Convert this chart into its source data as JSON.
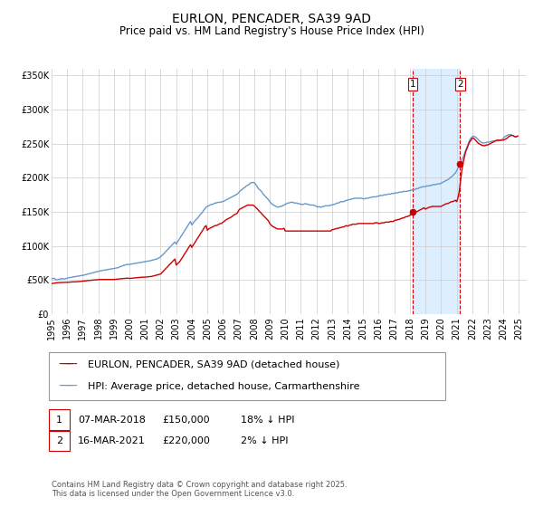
{
  "title": "EURLON, PENCADER, SA39 9AD",
  "subtitle": "Price paid vs. HM Land Registry's House Price Index (HPI)",
  "ylim": [
    0,
    360000
  ],
  "xlim_start": 1995.0,
  "xlim_end": 2025.5,
  "yticks": [
    0,
    50000,
    100000,
    150000,
    200000,
    250000,
    300000,
    350000
  ],
  "ytick_labels": [
    "£0",
    "£50K",
    "£100K",
    "£150K",
    "£200K",
    "£250K",
    "£300K",
    "£350K"
  ],
  "xticks": [
    1995,
    1996,
    1997,
    1998,
    1999,
    2000,
    2001,
    2002,
    2003,
    2004,
    2005,
    2006,
    2007,
    2008,
    2009,
    2010,
    2011,
    2012,
    2013,
    2014,
    2015,
    2016,
    2017,
    2018,
    2019,
    2020,
    2021,
    2022,
    2023,
    2024,
    2025
  ],
  "red_line_color": "#cc0000",
  "blue_line_color": "#6699cc",
  "marker1_x": 2018.18,
  "marker1_y": 150000,
  "marker2_x": 2021.21,
  "marker2_y": 220000,
  "shade_color": "#ddeeff",
  "legend_label_red": "EURLON, PENCADER, SA39 9AD (detached house)",
  "legend_label_blue": "HPI: Average price, detached house, Carmarthenshire",
  "annotation1_label": "1",
  "annotation2_label": "2",
  "annotation1_date": "07-MAR-2018",
  "annotation1_price": "£150,000",
  "annotation1_hpi": "18% ↓ HPI",
  "annotation2_date": "16-MAR-2021",
  "annotation2_price": "£220,000",
  "annotation2_hpi": "2% ↓ HPI",
  "footer": "Contains HM Land Registry data © Crown copyright and database right 2025.\nThis data is licensed under the Open Government Licence v3.0.",
  "background_color": "#ffffff",
  "grid_color": "#cccccc",
  "title_fontsize": 10,
  "subtitle_fontsize": 8.5,
  "tick_fontsize": 7,
  "legend_fontsize": 8,
  "ann_fontsize": 8,
  "footer_fontsize": 6,
  "hpi_data_x": [
    1995.0,
    1995.08,
    1995.17,
    1995.25,
    1995.33,
    1995.42,
    1995.5,
    1995.58,
    1995.67,
    1995.75,
    1995.83,
    1995.92,
    1996.0,
    1996.08,
    1996.17,
    1996.25,
    1996.33,
    1996.42,
    1996.5,
    1996.58,
    1996.67,
    1996.75,
    1996.83,
    1996.92,
    1997.0,
    1997.08,
    1997.17,
    1997.25,
    1997.33,
    1997.42,
    1997.5,
    1997.58,
    1997.67,
    1997.75,
    1997.83,
    1997.92,
    1998.0,
    1998.08,
    1998.17,
    1998.25,
    1998.33,
    1998.42,
    1998.5,
    1998.58,
    1998.67,
    1998.75,
    1998.83,
    1998.92,
    1999.0,
    1999.08,
    1999.17,
    1999.25,
    1999.33,
    1999.42,
    1999.5,
    1999.58,
    1999.67,
    1999.75,
    1999.83,
    1999.92,
    2000.0,
    2000.08,
    2000.17,
    2000.25,
    2000.33,
    2000.42,
    2000.5,
    2000.58,
    2000.67,
    2000.75,
    2000.83,
    2000.92,
    2001.0,
    2001.08,
    2001.17,
    2001.25,
    2001.33,
    2001.42,
    2001.5,
    2001.58,
    2001.67,
    2001.75,
    2001.83,
    2001.92,
    2002.0,
    2002.08,
    2002.17,
    2002.25,
    2002.33,
    2002.42,
    2002.5,
    2002.58,
    2002.67,
    2002.75,
    2002.83,
    2002.92,
    2003.0,
    2003.08,
    2003.17,
    2003.25,
    2003.33,
    2003.42,
    2003.5,
    2003.58,
    2003.67,
    2003.75,
    2003.83,
    2003.92,
    2004.0,
    2004.08,
    2004.17,
    2004.25,
    2004.33,
    2004.42,
    2004.5,
    2004.58,
    2004.67,
    2004.75,
    2004.83,
    2004.92,
    2005.0,
    2005.08,
    2005.17,
    2005.25,
    2005.33,
    2005.42,
    2005.5,
    2005.58,
    2005.67,
    2005.75,
    2005.83,
    2005.92,
    2006.0,
    2006.08,
    2006.17,
    2006.25,
    2006.33,
    2006.42,
    2006.5,
    2006.58,
    2006.67,
    2006.75,
    2006.83,
    2006.92,
    2007.0,
    2007.08,
    2007.17,
    2007.25,
    2007.33,
    2007.42,
    2007.5,
    2007.58,
    2007.67,
    2007.75,
    2007.83,
    2007.92,
    2008.0,
    2008.08,
    2008.17,
    2008.25,
    2008.33,
    2008.42,
    2008.5,
    2008.58,
    2008.67,
    2008.75,
    2008.83,
    2008.92,
    2009.0,
    2009.08,
    2009.17,
    2009.25,
    2009.33,
    2009.42,
    2009.5,
    2009.58,
    2009.67,
    2009.75,
    2009.83,
    2009.92,
    2010.0,
    2010.08,
    2010.17,
    2010.25,
    2010.33,
    2010.42,
    2010.5,
    2010.58,
    2010.67,
    2010.75,
    2010.83,
    2010.92,
    2011.0,
    2011.08,
    2011.17,
    2011.25,
    2011.33,
    2011.42,
    2011.5,
    2011.58,
    2011.67,
    2011.75,
    2011.83,
    2011.92,
    2012.0,
    2012.08,
    2012.17,
    2012.25,
    2012.33,
    2012.42,
    2012.5,
    2012.58,
    2012.67,
    2012.75,
    2012.83,
    2012.92,
    2013.0,
    2013.08,
    2013.17,
    2013.25,
    2013.33,
    2013.42,
    2013.5,
    2013.58,
    2013.67,
    2013.75,
    2013.83,
    2013.92,
    2014.0,
    2014.08,
    2014.17,
    2014.25,
    2014.33,
    2014.42,
    2014.5,
    2014.58,
    2014.67,
    2014.75,
    2014.83,
    2014.92,
    2015.0,
    2015.08,
    2015.17,
    2015.25,
    2015.33,
    2015.42,
    2015.5,
    2015.58,
    2015.67,
    2015.75,
    2015.83,
    2015.92,
    2016.0,
    2016.08,
    2016.17,
    2016.25,
    2016.33,
    2016.42,
    2016.5,
    2016.58,
    2016.67,
    2016.75,
    2016.83,
    2016.92,
    2017.0,
    2017.08,
    2017.17,
    2017.25,
    2017.33,
    2017.42,
    2017.5,
    2017.58,
    2017.67,
    2017.75,
    2017.83,
    2017.92,
    2018.0,
    2018.08,
    2018.17,
    2018.25,
    2018.33,
    2018.42,
    2018.5,
    2018.58,
    2018.67,
    2018.75,
    2018.83,
    2018.92,
    2019.0,
    2019.08,
    2019.17,
    2019.25,
    2019.33,
    2019.42,
    2019.5,
    2019.58,
    2019.67,
    2019.75,
    2019.83,
    2019.92,
    2020.0,
    2020.08,
    2020.17,
    2020.25,
    2020.33,
    2020.42,
    2020.5,
    2020.58,
    2020.67,
    2020.75,
    2020.83,
    2020.92,
    2021.0,
    2021.08,
    2021.17,
    2021.25,
    2021.33,
    2021.42,
    2021.5,
    2021.58,
    2021.67,
    2021.75,
    2021.83,
    2021.92,
    2022.0,
    2022.08,
    2022.17,
    2022.25,
    2022.33,
    2022.42,
    2022.5,
    2022.58,
    2022.67,
    2022.75,
    2022.83,
    2022.92,
    2023.0,
    2023.08,
    2023.17,
    2023.25,
    2023.33,
    2023.42,
    2023.5,
    2023.58,
    2023.67,
    2023.75,
    2023.83,
    2023.92,
    2024.0,
    2024.08,
    2024.17,
    2024.25,
    2024.33,
    2024.42,
    2024.5,
    2024.58,
    2024.67,
    2024.75,
    2024.83,
    2024.92
  ],
  "hpi_data_y": [
    52000,
    52500,
    52800,
    51000,
    50500,
    51000,
    51500,
    52000,
    52300,
    52000,
    51800,
    52500,
    53000,
    53500,
    54000,
    54000,
    54500,
    55000,
    55000,
    55500,
    56000,
    56000,
    56500,
    57000,
    57000,
    57500,
    58000,
    58500,
    59000,
    59500,
    60000,
    60500,
    61000,
    61500,
    62000,
    62500,
    63000,
    63500,
    64000,
    64000,
    64500,
    65000,
    65000,
    65500,
    66000,
    66000,
    66500,
    67000,
    67000,
    67500,
    68000,
    68000,
    69000,
    70000,
    70500,
    71000,
    72000,
    72500,
    73000,
    73000,
    73000,
    73500,
    74000,
    74000,
    74500,
    75000,
    75000,
    75500,
    76000,
    76000,
    76500,
    77000,
    77000,
    77500,
    78000,
    78000,
    78500,
    79000,
    79500,
    80000,
    80500,
    81000,
    82000,
    83000,
    84000,
    86000,
    88000,
    90000,
    92000,
    94000,
    96000,
    98000,
    100000,
    102000,
    104000,
    106000,
    103000,
    106000,
    109000,
    112000,
    115000,
    118000,
    121000,
    124000,
    127000,
    130000,
    133000,
    136000,
    131000,
    133000,
    136000,
    138000,
    140000,
    142000,
    145000,
    147000,
    149000,
    152000,
    154000,
    157000,
    158000,
    159000,
    160000,
    161000,
    161000,
    162000,
    163000,
    163000,
    164000,
    164000,
    164000,
    165000,
    165000,
    166000,
    167000,
    168000,
    169000,
    170000,
    171000,
    172000,
    173000,
    174000,
    175000,
    176000,
    178000,
    180000,
    182000,
    183000,
    185000,
    186000,
    188000,
    189000,
    190000,
    192000,
    193000,
    193000,
    193000,
    191000,
    188000,
    185000,
    183000,
    181000,
    179000,
    176000,
    174000,
    172000,
    170000,
    168000,
    165000,
    163000,
    161000,
    160000,
    159000,
    158000,
    157000,
    157000,
    158000,
    158000,
    159000,
    160000,
    161000,
    162000,
    163000,
    163000,
    164000,
    164000,
    164000,
    163000,
    163000,
    163000,
    162000,
    162000,
    161000,
    161000,
    161000,
    162000,
    162000,
    161000,
    161000,
    160000,
    160000,
    160000,
    160000,
    159000,
    158000,
    157000,
    158000,
    157000,
    157000,
    158000,
    158000,
    159000,
    159000,
    159000,
    159000,
    160000,
    160000,
    161000,
    161000,
    162000,
    163000,
    163000,
    164000,
    165000,
    165000,
    165000,
    166000,
    167000,
    167000,
    168000,
    168000,
    169000,
    169000,
    170000,
    170000,
    170000,
    170000,
    170000,
    170000,
    170000,
    169000,
    169000,
    170000,
    170000,
    170000,
    171000,
    171000,
    172000,
    172000,
    172000,
    172000,
    173000,
    173000,
    174000,
    174000,
    174000,
    175000,
    175000,
    175000,
    176000,
    176000,
    176000,
    177000,
    177000,
    177000,
    178000,
    178000,
    178000,
    179000,
    179000,
    179000,
    180000,
    180000,
    180000,
    180000,
    181000,
    181000,
    182000,
    182000,
    182000,
    183000,
    184000,
    184000,
    185000,
    186000,
    186000,
    187000,
    187000,
    187000,
    188000,
    188000,
    188000,
    189000,
    189000,
    190000,
    190000,
    190000,
    191000,
    191000,
    191000,
    192000,
    193000,
    194000,
    195000,
    196000,
    197000,
    198000,
    200000,
    201000,
    203000,
    205000,
    207000,
    210000,
    214000,
    218000,
    222000,
    226000,
    230000,
    235000,
    240000,
    245000,
    250000,
    255000,
    258000,
    260000,
    261000,
    260000,
    259000,
    257000,
    255000,
    253000,
    252000,
    251000,
    251000,
    251000,
    252000,
    252000,
    252000,
    253000,
    253000,
    254000,
    254000,
    254000,
    254000,
    254000,
    254000,
    255000,
    256000,
    258000,
    260000,
    261000,
    262000,
    263000,
    263000,
    263000,
    262000,
    261000,
    260000,
    260000,
    261000
  ],
  "red_data_x": [
    1995.0,
    1995.08,
    1995.17,
    1995.25,
    1995.33,
    1995.42,
    1995.5,
    1995.58,
    1995.67,
    1995.75,
    1995.83,
    1995.92,
    1996.0,
    1996.08,
    1996.17,
    1996.25,
    1996.33,
    1996.42,
    1996.5,
    1996.58,
    1996.67,
    1996.75,
    1996.83,
    1996.92,
    1997.0,
    1997.08,
    1997.17,
    1997.25,
    1997.33,
    1997.42,
    1997.5,
    1997.58,
    1997.67,
    1997.75,
    1997.83,
    1997.92,
    1998.0,
    1998.08,
    1998.17,
    1998.25,
    1998.33,
    1998.42,
    1998.5,
    1998.58,
    1998.67,
    1998.75,
    1998.83,
    1998.92,
    1999.0,
    1999.08,
    1999.17,
    1999.25,
    1999.33,
    1999.42,
    1999.5,
    1999.58,
    1999.67,
    1999.75,
    1999.83,
    1999.92,
    2000.0,
    2000.08,
    2000.17,
    2000.25,
    2000.33,
    2000.42,
    2000.5,
    2000.58,
    2000.67,
    2000.75,
    2000.83,
    2000.92,
    2001.0,
    2001.08,
    2001.17,
    2001.25,
    2001.33,
    2001.42,
    2001.5,
    2001.58,
    2001.67,
    2001.75,
    2001.83,
    2001.92,
    2002.0,
    2002.08,
    2002.17,
    2002.25,
    2002.33,
    2002.42,
    2002.5,
    2002.58,
    2002.67,
    2002.75,
    2002.83,
    2002.92,
    2003.0,
    2003.08,
    2003.17,
    2003.25,
    2003.33,
    2003.42,
    2003.5,
    2003.58,
    2003.67,
    2003.75,
    2003.83,
    2003.92,
    2004.0,
    2004.08,
    2004.17,
    2004.25,
    2004.33,
    2004.42,
    2004.5,
    2004.58,
    2004.67,
    2004.75,
    2004.83,
    2004.92,
    2005.0,
    2005.08,
    2005.17,
    2005.25,
    2005.33,
    2005.42,
    2005.5,
    2005.58,
    2005.67,
    2005.75,
    2005.83,
    2005.92,
    2006.0,
    2006.08,
    2006.17,
    2006.25,
    2006.33,
    2006.42,
    2006.5,
    2006.58,
    2006.67,
    2006.75,
    2006.83,
    2006.92,
    2007.0,
    2007.08,
    2007.17,
    2007.25,
    2007.33,
    2007.42,
    2007.5,
    2007.58,
    2007.67,
    2007.75,
    2007.83,
    2007.92,
    2008.0,
    2008.08,
    2008.17,
    2008.25,
    2008.33,
    2008.42,
    2008.5,
    2008.58,
    2008.67,
    2008.75,
    2008.83,
    2008.92,
    2009.0,
    2009.08,
    2009.17,
    2009.25,
    2009.33,
    2009.42,
    2009.5,
    2009.58,
    2009.67,
    2009.75,
    2009.83,
    2009.92,
    2010.0,
    2010.08,
    2010.17,
    2010.25,
    2010.33,
    2010.42,
    2010.5,
    2010.58,
    2010.67,
    2010.75,
    2010.83,
    2010.92,
    2011.0,
    2011.08,
    2011.17,
    2011.25,
    2011.33,
    2011.42,
    2011.5,
    2011.58,
    2011.67,
    2011.75,
    2011.83,
    2011.92,
    2012.0,
    2012.08,
    2012.17,
    2012.25,
    2012.33,
    2012.42,
    2012.5,
    2012.58,
    2012.67,
    2012.75,
    2012.83,
    2012.92,
    2013.0,
    2013.08,
    2013.17,
    2013.25,
    2013.33,
    2013.42,
    2013.5,
    2013.58,
    2013.67,
    2013.75,
    2013.83,
    2013.92,
    2014.0,
    2014.08,
    2014.17,
    2014.25,
    2014.33,
    2014.42,
    2014.5,
    2014.58,
    2014.67,
    2014.75,
    2014.83,
    2014.92,
    2015.0,
    2015.08,
    2015.17,
    2015.25,
    2015.33,
    2015.42,
    2015.5,
    2015.58,
    2015.67,
    2015.75,
    2015.83,
    2015.92,
    2016.0,
    2016.08,
    2016.17,
    2016.25,
    2016.33,
    2016.42,
    2016.5,
    2016.58,
    2016.67,
    2016.75,
    2016.83,
    2016.92,
    2017.0,
    2017.08,
    2017.17,
    2017.25,
    2017.33,
    2017.42,
    2017.5,
    2017.58,
    2017.67,
    2017.75,
    2017.83,
    2017.92,
    2018.0,
    2018.08,
    2018.17,
    2018.25,
    2018.33,
    2018.42,
    2018.5,
    2018.58,
    2018.67,
    2018.75,
    2018.83,
    2018.92,
    2019.0,
    2019.08,
    2019.17,
    2019.25,
    2019.33,
    2019.42,
    2019.5,
    2019.58,
    2019.67,
    2019.75,
    2019.83,
    2019.92,
    2020.0,
    2020.08,
    2020.17,
    2020.25,
    2020.33,
    2020.42,
    2020.5,
    2020.58,
    2020.67,
    2020.75,
    2020.83,
    2020.92,
    2021.0,
    2021.08,
    2021.17,
    2021.25,
    2021.33,
    2021.42,
    2021.5,
    2021.58,
    2021.67,
    2021.75,
    2021.83,
    2021.92,
    2022.0,
    2022.08,
    2022.17,
    2022.25,
    2022.33,
    2022.42,
    2022.5,
    2022.58,
    2022.67,
    2022.75,
    2022.83,
    2022.92,
    2023.0,
    2023.08,
    2023.17,
    2023.25,
    2023.33,
    2023.42,
    2023.5,
    2023.58,
    2023.67,
    2023.75,
    2023.83,
    2023.92,
    2024.0,
    2024.08,
    2024.17,
    2024.25,
    2024.33,
    2024.42,
    2024.5,
    2024.58,
    2024.67,
    2024.75,
    2024.83,
    2024.92
  ],
  "red_data_y": [
    45000,
    45300,
    45600,
    46000,
    46200,
    46400,
    46500,
    46600,
    46700,
    46800,
    46900,
    47000,
    47000,
    47000,
    47200,
    47400,
    47500,
    47500,
    47600,
    47700,
    47800,
    48000,
    48200,
    48400,
    48500,
    48700,
    49000,
    49200,
    49400,
    49600,
    49800,
    50000,
    50200,
    50400,
    50500,
    50600,
    51000,
    51000,
    51000,
    51000,
    51000,
    51000,
    51000,
    51000,
    51000,
    51000,
    51000,
    51000,
    51000,
    51200,
    51400,
    51500,
    51700,
    52000,
    52200,
    52400,
    52500,
    52700,
    52800,
    53000,
    52500,
    52700,
    53000,
    53200,
    53400,
    53500,
    53700,
    53900,
    54000,
    54200,
    54400,
    54500,
    54500,
    54700,
    55000,
    55200,
    55400,
    55500,
    56000,
    56500,
    57000,
    57500,
    58000,
    58500,
    59000,
    61000,
    63000,
    65000,
    67000,
    69000,
    71000,
    73000,
    75000,
    77000,
    79000,
    81000,
    72000,
    74000,
    76000,
    78000,
    81000,
    84000,
    87000,
    90000,
    93000,
    96000,
    99000,
    102000,
    98000,
    101000,
    104000,
    107000,
    110000,
    113000,
    116000,
    119000,
    122000,
    125000,
    128000,
    130000,
    123000,
    125000,
    126000,
    127000,
    128000,
    129000,
    130000,
    130000,
    131000,
    132000,
    133000,
    133000,
    135000,
    136000,
    138000,
    139000,
    140000,
    141000,
    142000,
    143000,
    145000,
    146000,
    147000,
    148000,
    152000,
    154000,
    155000,
    156000,
    157000,
    158000,
    159000,
    160000,
    160000,
    160000,
    160000,
    160000,
    159000,
    157000,
    155000,
    153000,
    151000,
    149000,
    147000,
    145000,
    143000,
    141000,
    139000,
    137000,
    133000,
    131000,
    129000,
    128000,
    127000,
    126000,
    125000,
    125000,
    125000,
    125000,
    125000,
    126000,
    122000,
    122000,
    122000,
    122000,
    122000,
    122000,
    122000,
    122000,
    122000,
    122000,
    122000,
    122000,
    122000,
    122000,
    122000,
    122000,
    122000,
    122000,
    122000,
    122000,
    122000,
    122000,
    122000,
    122000,
    122000,
    122000,
    122000,
    122000,
    122000,
    122000,
    122000,
    122000,
    122000,
    122000,
    122000,
    122000,
    124000,
    124000,
    125000,
    125000,
    126000,
    126000,
    127000,
    127000,
    128000,
    128000,
    129000,
    130000,
    129000,
    130000,
    131000,
    131000,
    132000,
    132000,
    132000,
    132000,
    133000,
    133000,
    133000,
    133000,
    133000,
    133000,
    133000,
    133000,
    133000,
    133000,
    133000,
    133000,
    133000,
    134000,
    134000,
    134000,
    133000,
    133000,
    134000,
    134000,
    134000,
    135000,
    135000,
    135000,
    135000,
    136000,
    136000,
    136000,
    137000,
    138000,
    138000,
    139000,
    139000,
    140000,
    141000,
    141000,
    142000,
    143000,
    143000,
    144000,
    145000,
    146000,
    147000,
    148000,
    149000,
    150000,
    151000,
    152000,
    153000,
    154000,
    155000,
    156000,
    154000,
    155000,
    156000,
    157000,
    157000,
    158000,
    158000,
    158000,
    158000,
    158000,
    158000,
    158000,
    158000,
    159000,
    160000,
    161000,
    162000,
    162000,
    163000,
    164000,
    165000,
    165000,
    166000,
    167000,
    165000,
    170000,
    180000,
    195000,
    210000,
    222000,
    230000,
    238000,
    243000,
    248000,
    252000,
    255000,
    258000,
    258000,
    256000,
    254000,
    252000,
    250000,
    249000,
    248000,
    247000,
    247000,
    247000,
    248000,
    248000,
    249000,
    250000,
    251000,
    252000,
    253000,
    254000,
    255000,
    255000,
    255000,
    255000,
    255000,
    255000,
    256000,
    257000,
    258000,
    260000,
    261000,
    262000,
    262000,
    261000,
    260000,
    260000,
    261000
  ]
}
